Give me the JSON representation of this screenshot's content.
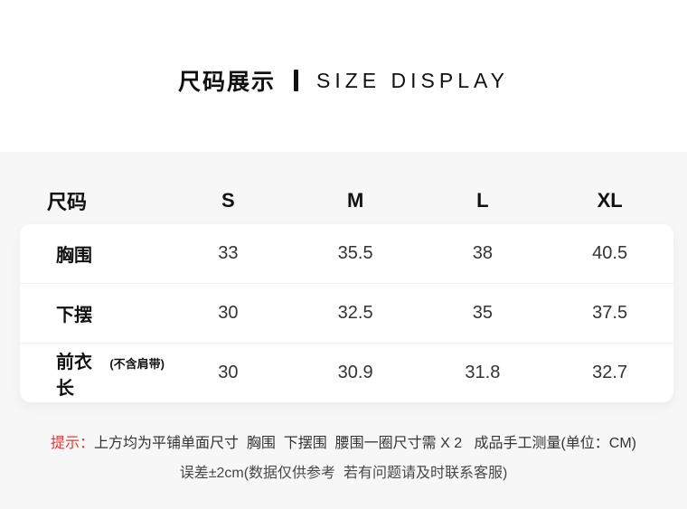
{
  "header": {
    "title_cn": "尺码展示",
    "title_en": "SIZE DISPLAY"
  },
  "size_table": {
    "columns": [
      "尺码",
      "S",
      "M",
      "L",
      "XL"
    ],
    "rows": [
      {
        "label": "胸围",
        "note": "",
        "values": [
          "33",
          "35.5",
          "38",
          "40.5"
        ]
      },
      {
        "label": "下摆",
        "note": "",
        "values": [
          "30",
          "32.5",
          "35",
          "37.5"
        ]
      },
      {
        "label": "前衣长",
        "note": "(不含肩带)",
        "values": [
          "30",
          "30.9",
          "31.8",
          "32.7"
        ]
      }
    ]
  },
  "footer": {
    "tip_label": "提示：",
    "line1": "上方均为平铺单面尺寸  胸围  下摆围  腰围一圈尺寸需 X 2   成品手工测量(单位：CM)",
    "line2": "误差±2cm(数据仅供参考  若有问题请及时联系客服)"
  },
  "colors": {
    "accent_red": "#f53030",
    "section_bg": "#f7f7f8",
    "card_bg": "#ffffff",
    "text_dark": "#333333"
  },
  "chart_data": {
    "type": "table",
    "title": "尺码展示 SIZE DISPLAY",
    "columns": [
      "尺码",
      "S",
      "M",
      "L",
      "XL"
    ],
    "rows": [
      [
        "胸围",
        33,
        35.5,
        38,
        40.5
      ],
      [
        "下摆",
        30,
        32.5,
        35,
        37.5
      ],
      [
        "前衣长(不含肩带)",
        30,
        30.9,
        31.8,
        32.7
      ]
    ],
    "unit": "CM"
  }
}
